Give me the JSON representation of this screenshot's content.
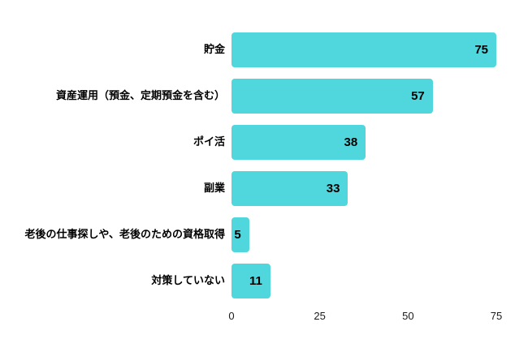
{
  "chart_data": {
    "type": "bar",
    "orientation": "horizontal",
    "title": "",
    "xlabel": "",
    "ylabel": "",
    "categories": [
      "貯金",
      "資産運用（預金、定期預金を含む）",
      "ポイ活",
      "副業",
      "老後の仕事探しや、老後のための資格取得",
      "対策していない"
    ],
    "values": [
      75,
      57,
      38,
      33,
      5,
      11
    ],
    "xlim": [
      0,
      75
    ],
    "x_ticks": [
      0,
      25,
      50,
      75
    ],
    "bar_color": "#4fd7dd",
    "value_label_color": "#000000",
    "background_color": "#ffffff",
    "grid": false,
    "legend": false
  }
}
